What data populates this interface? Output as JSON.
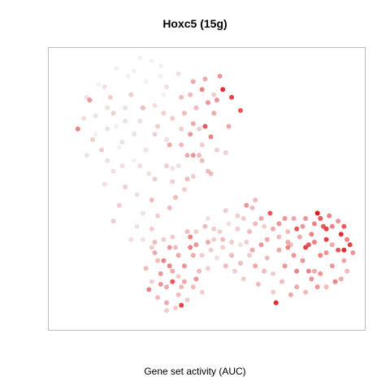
{
  "chart_data": {
    "type": "scatter",
    "title": "Hoxc5 (15g)",
    "xlabel": "Gene set activity (AUC)",
    "ylabel": "",
    "xlim": [
      0,
      100
    ],
    "ylim": [
      0,
      100
    ],
    "grid": false,
    "color_scale": {
      "low": "#f0f0f0",
      "high": "#e4181c",
      "variable": "AUC"
    },
    "points": [
      [
        10,
        83,
        0.5
      ],
      [
        12,
        70,
        0.0
      ],
      [
        15,
        88,
        0.1
      ],
      [
        18,
        78,
        0.2
      ],
      [
        20,
        65,
        0.0
      ],
      [
        22,
        75,
        0.1
      ],
      [
        25,
        60,
        0.0
      ],
      [
        28,
        80,
        0.3
      ],
      [
        30,
        55,
        0.1
      ],
      [
        32,
        70,
        0.2
      ],
      [
        35,
        85,
        0.0
      ],
      [
        37,
        66,
        0.4
      ],
      [
        40,
        58,
        0.1
      ],
      [
        42,
        78,
        0.3
      ],
      [
        45,
        62,
        0.5
      ],
      [
        47,
        72,
        0.2
      ],
      [
        50,
        56,
        0.3
      ],
      [
        52,
        85,
        0.2
      ],
      [
        38,
        52,
        0.2
      ],
      [
        26,
        47,
        0.1
      ],
      [
        18,
        56,
        0.1
      ],
      [
        14,
        64,
        0.2
      ],
      [
        23,
        92,
        0.0
      ],
      [
        34,
        92,
        0.0
      ],
      [
        45,
        90,
        0.4
      ],
      [
        48,
        87,
        0.6
      ],
      [
        50,
        82,
        0.5
      ],
      [
        52,
        78,
        0.4
      ],
      [
        49,
        73,
        0.7
      ],
      [
        44,
        70,
        0.5
      ],
      [
        41,
        66,
        0.3
      ],
      [
        36,
        58,
        0.2
      ],
      [
        31,
        45,
        0.3
      ],
      [
        28,
        40,
        0.1
      ],
      [
        22,
        50,
        0.2
      ],
      [
        16,
        60,
        0.1
      ],
      [
        12,
        77,
        0.1
      ],
      [
        19,
        95,
        0.0
      ],
      [
        27,
        99,
        0.0
      ],
      [
        34,
        96,
        0.0
      ],
      [
        40,
        93,
        0.1
      ],
      [
        46,
        80,
        0.3
      ],
      [
        53,
        64,
        0.2
      ],
      [
        55,
        87,
        0.9
      ],
      [
        58,
        84,
        0.8
      ],
      [
        61,
        79,
        0.7
      ],
      [
        54,
        92,
        0.5
      ],
      [
        57,
        73,
        0.4
      ],
      [
        48,
        66,
        0.2
      ],
      [
        43,
        53,
        0.3
      ],
      [
        39,
        46,
        0.3
      ],
      [
        33,
        39,
        0.2
      ],
      [
        26,
        35,
        0.1
      ],
      [
        20,
        43,
        0.2
      ],
      [
        15,
        51,
        0.1
      ],
      [
        11,
        68,
        0.2
      ],
      [
        8,
        76,
        0.1
      ],
      [
        6,
        72,
        0.6
      ],
      [
        9,
        62,
        0.1
      ],
      [
        17,
        84,
        0.2
      ],
      [
        24,
        85,
        0.2
      ],
      [
        32,
        81,
        0.1
      ],
      [
        38,
        76,
        0.2
      ],
      [
        45,
        74,
        0.4
      ],
      [
        51,
        69,
        0.6
      ],
      [
        48,
        60,
        0.3
      ],
      [
        42,
        49,
        0.2
      ],
      [
        37,
        42,
        0.3
      ],
      [
        31,
        34,
        0.2
      ],
      [
        24,
        30,
        0.1
      ],
      [
        18,
        37,
        0.2
      ],
      [
        21,
        58,
        0.1
      ],
      [
        29,
        64,
        0.1
      ],
      [
        36,
        68,
        0.1
      ],
      [
        43,
        62,
        0.4
      ],
      [
        51,
        55,
        0.3
      ],
      [
        56,
        63,
        0.2
      ],
      [
        41,
        84,
        0.3
      ],
      [
        36,
        88,
        0.1
      ],
      [
        29,
        90,
        0.0
      ],
      [
        22,
        80,
        0.1
      ],
      [
        16,
        72,
        0.1
      ],
      [
        25,
        70,
        0.1
      ],
      [
        33,
        73,
        0.2
      ],
      [
        41,
        72,
        0.2
      ],
      [
        47,
        62,
        0.3
      ],
      [
        45,
        54,
        0.2
      ],
      [
        38,
        57,
        0.1
      ],
      [
        32,
        53,
        0.2
      ],
      [
        27,
        58,
        0.1
      ],
      [
        21,
        67,
        0.1
      ],
      [
        16,
        80,
        0.1
      ],
      [
        13,
        89,
        0.0
      ],
      [
        9,
        84,
        0.1
      ],
      [
        19,
        73,
        0.0
      ],
      [
        27,
        75,
        0.1
      ],
      [
        35,
        78,
        0.2
      ],
      [
        44,
        85,
        0.3
      ],
      [
        49,
        91,
        0.4
      ],
      [
        53,
        83,
        0.5
      ],
      [
        31,
        98,
        0.0
      ],
      [
        25,
        94,
        0.0
      ],
      [
        28,
        30,
        0.1
      ],
      [
        32,
        25,
        0.4
      ],
      [
        35,
        22,
        0.6
      ],
      [
        37,
        27,
        0.5
      ],
      [
        34,
        17,
        0.5
      ],
      [
        36,
        12,
        0.4
      ],
      [
        38,
        14,
        0.7
      ],
      [
        40,
        9,
        0.3
      ],
      [
        42,
        20,
        0.5
      ],
      [
        44,
        27,
        0.6
      ],
      [
        46,
        15,
        0.5
      ],
      [
        39,
        4,
        0.2
      ],
      [
        41,
        5,
        0.8
      ],
      [
        36,
        6,
        0.4
      ],
      [
        33,
        8,
        0.3
      ],
      [
        31,
        14,
        0.2
      ],
      [
        29,
        19,
        0.3
      ],
      [
        32,
        29,
        0.3
      ],
      [
        38,
        31,
        0.2
      ],
      [
        43,
        33,
        0.3
      ],
      [
        45,
        24,
        0.4
      ],
      [
        47,
        18,
        0.3
      ],
      [
        48,
        10,
        0.2
      ],
      [
        34,
        13,
        0.5
      ],
      [
        37,
        20,
        0.6
      ],
      [
        40,
        24,
        0.4
      ],
      [
        30,
        11,
        0.6
      ],
      [
        42,
        14,
        0.4
      ],
      [
        44,
        31,
        0.6
      ],
      [
        46,
        28,
        0.5
      ],
      [
        39,
        27,
        0.3
      ],
      [
        35,
        30,
        0.2
      ],
      [
        48,
        24,
        0.2
      ],
      [
        50,
        19,
        0.2
      ],
      [
        50,
        29,
        0.4
      ],
      [
        49,
        35,
        0.3
      ],
      [
        46,
        33,
        0.2
      ],
      [
        41,
        12,
        0.3
      ],
      [
        36,
        3,
        0.2
      ],
      [
        43,
        7,
        0.2
      ],
      [
        33,
        22,
        0.3
      ],
      [
        31,
        27,
        0.2
      ],
      [
        38,
        18,
        0.4
      ],
      [
        45,
        12,
        0.3
      ],
      [
        40,
        16,
        0.2
      ],
      [
        52,
        30,
        0.2
      ],
      [
        55,
        27,
        0.2
      ],
      [
        58,
        24,
        0.3
      ],
      [
        61,
        28,
        0.1
      ],
      [
        64,
        24,
        0.2
      ],
      [
        66,
        20,
        0.4
      ],
      [
        68,
        28,
        0.5
      ],
      [
        70,
        23,
        0.3
      ],
      [
        72,
        17,
        0.2
      ],
      [
        74,
        26,
        0.4
      ],
      [
        76,
        20,
        0.5
      ],
      [
        78,
        28,
        0.3
      ],
      [
        80,
        18,
        0.6
      ],
      [
        82,
        22,
        0.5
      ],
      [
        84,
        28,
        0.7
      ],
      [
        86,
        18,
        0.4
      ],
      [
        88,
        24,
        0.6
      ],
      [
        90,
        30,
        0.8
      ],
      [
        92,
        20,
        0.5
      ],
      [
        94,
        26,
        0.7
      ],
      [
        96,
        22,
        0.4
      ],
      [
        98,
        28,
        0.8
      ],
      [
        95,
        32,
        0.9
      ],
      [
        92,
        35,
        0.6
      ],
      [
        88,
        38,
        0.7
      ],
      [
        85,
        32,
        0.6
      ],
      [
        82,
        35,
        0.5
      ],
      [
        79,
        38,
        0.4
      ],
      [
        77,
        33,
        0.3
      ],
      [
        74,
        36,
        0.5
      ],
      [
        71,
        40,
        0.7
      ],
      [
        68,
        38,
        0.4
      ],
      [
        65,
        42,
        0.3
      ],
      [
        62,
        38,
        0.2
      ],
      [
        60,
        34,
        0.2
      ],
      [
        57,
        36,
        0.1
      ],
      [
        54,
        33,
        0.2
      ],
      [
        64,
        33,
        0.3
      ],
      [
        70,
        30,
        0.4
      ],
      [
        75,
        14,
        0.3
      ],
      [
        80,
        12,
        0.4
      ],
      [
        85,
        15,
        0.5
      ],
      [
        90,
        12,
        0.3
      ],
      [
        95,
        15,
        0.4
      ],
      [
        97,
        18,
        0.3
      ],
      [
        93,
        14,
        0.6
      ],
      [
        87,
        12,
        0.5
      ],
      [
        83,
        10,
        0.3
      ],
      [
        78,
        9,
        0.4
      ],
      [
        72,
        10,
        0.2
      ],
      [
        67,
        13,
        0.3
      ],
      [
        62,
        15,
        0.2
      ],
      [
        59,
        18,
        0.2
      ],
      [
        56,
        20,
        0.3
      ],
      [
        53,
        23,
        0.1
      ],
      [
        51,
        26,
        0.2
      ],
      [
        99,
        25,
        0.5
      ],
      [
        97,
        30,
        0.6
      ],
      [
        94,
        37,
        0.5
      ],
      [
        91,
        39,
        0.6
      ],
      [
        89,
        35,
        0.7
      ],
      [
        86,
        36,
        0.6
      ],
      [
        83,
        38,
        0.5
      ],
      [
        81,
        31,
        0.4
      ],
      [
        79,
        24,
        0.5
      ],
      [
        77,
        29,
        0.4
      ],
      [
        74,
        31,
        0.3
      ],
      [
        72,
        34,
        0.4
      ],
      [
        69,
        35,
        0.2
      ],
      [
        66,
        36,
        0.3
      ],
      [
        63,
        29,
        0.2
      ],
      [
        61,
        21,
        0.3
      ],
      [
        58,
        29,
        0.2
      ],
      [
        55,
        30,
        0.3
      ],
      [
        52,
        34,
        0.2
      ],
      [
        50,
        38,
        0.1
      ],
      [
        84,
        18,
        0.6
      ],
      [
        90,
        25,
        0.5
      ],
      [
        96,
        35,
        0.7
      ],
      [
        73,
        6,
        0.9
      ],
      [
        76,
        38,
        0.5
      ],
      [
        86,
        29,
        0.6
      ],
      [
        92,
        28,
        0.4
      ],
      [
        88,
        17,
        0.5
      ],
      [
        69,
        18,
        0.3
      ],
      [
        65,
        26,
        0.4
      ],
      [
        60,
        39,
        0.2
      ],
      [
        56,
        41,
        0.2
      ],
      [
        87,
        40,
        1.0
      ],
      [
        96,
        26,
        0.9
      ],
      [
        90,
        34,
        0.8
      ],
      [
        83,
        27,
        0.8
      ],
      [
        63,
        43,
        0.5
      ],
      [
        66,
        45,
        0.3
      ],
      [
        77,
        27,
        0.6
      ],
      [
        80,
        34,
        0.7
      ]
    ]
  }
}
